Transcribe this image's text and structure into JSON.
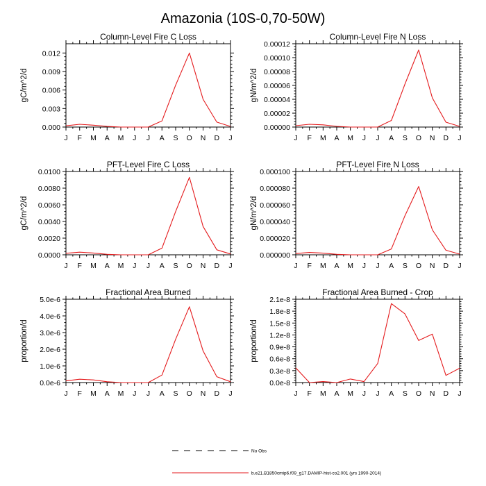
{
  "figure": {
    "title": "Amazonia (10S-0,70-50W)",
    "legend": [
      {
        "label": "No Obs",
        "style": "dashed",
        "color": "#000000"
      },
      {
        "label": "b.e21.B1850cmip6.f09_g17.DAMIP-hist-co2.001 (yrs 1990-2014)",
        "style": "solid",
        "color": "#e41a1c"
      }
    ]
  },
  "chart_data": [
    {
      "type": "line",
      "title": "Column-Level Fire C Loss",
      "ylabel": "gC/m^2/d",
      "categories": [
        "J",
        "F",
        "M",
        "A",
        "M",
        "J",
        "J",
        "A",
        "S",
        "O",
        "N",
        "D",
        "J"
      ],
      "yticks": [
        "0.000",
        "0.003",
        "0.006",
        "0.009",
        "0.012"
      ],
      "ylim": [
        0,
        0.0135
      ],
      "series": [
        {
          "color": "#e41a1c",
          "values": [
            0.0002,
            0.00045,
            0.0003,
            0.0001,
            0.0,
            0.0,
            0.0,
            0.001,
            0.0068,
            0.012,
            0.0045,
            0.0008,
            0.0001
          ]
        }
      ]
    },
    {
      "type": "line",
      "title": "Column-Level Fire N Loss",
      "ylabel": "gN/m^2/d",
      "categories": [
        "J",
        "F",
        "M",
        "A",
        "M",
        "J",
        "J",
        "A",
        "S",
        "O",
        "N",
        "D",
        "J"
      ],
      "yticks": [
        "0.00000",
        "0.00002",
        "0.00004",
        "0.00006",
        "0.00008",
        "0.00010",
        "0.00012"
      ],
      "ylim": [
        0,
        0.00012
      ],
      "series": [
        {
          "color": "#e41a1c",
          "values": [
            2e-06,
            4e-06,
            3.2e-06,
            1e-06,
            0.0,
            0.0,
            0.0,
            9.5e-06,
            6.2e-05,
            0.000111,
            4.2e-05,
            7e-06,
            1e-06
          ]
        }
      ]
    },
    {
      "type": "line",
      "title": "PFT-Level Fire C Loss",
      "ylabel": "gC/m^2/d",
      "categories": [
        "J",
        "F",
        "M",
        "A",
        "M",
        "J",
        "J",
        "A",
        "S",
        "O",
        "N",
        "D",
        "J"
      ],
      "yticks": [
        "0.0000",
        "0.0020",
        "0.0040",
        "0.0060",
        "0.0080",
        "0.0100"
      ],
      "ylim": [
        0,
        0.01
      ],
      "series": [
        {
          "color": "#e41a1c",
          "values": [
            0.00018,
            0.00032,
            0.00022,
            6e-05,
            0.0,
            0.0,
            0.0,
            0.0008,
            0.0052,
            0.0093,
            0.0034,
            0.0006,
            0.0001
          ]
        }
      ]
    },
    {
      "type": "line",
      "title": "PFT-Level Fire N Loss",
      "ylabel": "gN/m^2/d",
      "categories": [
        "J",
        "F",
        "M",
        "A",
        "M",
        "J",
        "J",
        "A",
        "S",
        "O",
        "N",
        "D",
        "J"
      ],
      "yticks": [
        "0.000000",
        "0.000020",
        "0.000040",
        "0.000060",
        "0.000080",
        "0.000100"
      ],
      "ylim": [
        0,
        0.0001
      ],
      "series": [
        {
          "color": "#e41a1c",
          "values": [
            1.5e-06,
            2.8e-06,
            2e-06,
            6e-07,
            0.0,
            0.0,
            0.0,
            7e-06,
            4.7e-05,
            8.2e-05,
            3e-05,
            5.5e-06,
            8e-07
          ]
        }
      ]
    },
    {
      "type": "line",
      "title": "Fractional Area Burned",
      "ylabel": "proportion/d",
      "categories": [
        "J",
        "F",
        "M",
        "A",
        "M",
        "J",
        "J",
        "A",
        "S",
        "O",
        "N",
        "D",
        "J"
      ],
      "yticks": [
        "0.0e-6",
        "1.0e-6",
        "2.0e-6",
        "3.0e-6",
        "4.0e-6",
        "5.0e-6"
      ],
      "ylim": [
        0,
        5e-06
      ],
      "series": [
        {
          "color": "#e41a1c",
          "values": [
            1e-07,
            2e-07,
            1.6e-07,
            5e-08,
            0.0,
            0.0,
            0.0,
            4.5e-07,
            2.6e-06,
            4.55e-06,
            1.9e-06,
            3.5e-07,
            5e-08
          ]
        }
      ]
    },
    {
      "type": "line",
      "title": "Fractional Area Burned - Crop",
      "ylabel": "proportion/d",
      "categories": [
        "J",
        "F",
        "M",
        "A",
        "M",
        "J",
        "J",
        "A",
        "S",
        "O",
        "N",
        "D",
        "J"
      ],
      "yticks": [
        "0.0e-8",
        "0.3e-8",
        "0.6e-8",
        "0.9e-8",
        "1.2e-8",
        "1.5e-8",
        "1.8e-8",
        "2.1e-8"
      ],
      "ylim": [
        0,
        2.1e-08
      ],
      "series": [
        {
          "color": "#e41a1c",
          "values": [
            3.7e-09,
            0.0,
            2.5e-10,
            0.0,
            9e-10,
            2.5e-10,
            4.8e-09,
            1.99e-08,
            1.73e-08,
            1.06e-08,
            1.22e-08,
            1.8e-09,
            3.6e-09
          ]
        }
      ]
    }
  ]
}
